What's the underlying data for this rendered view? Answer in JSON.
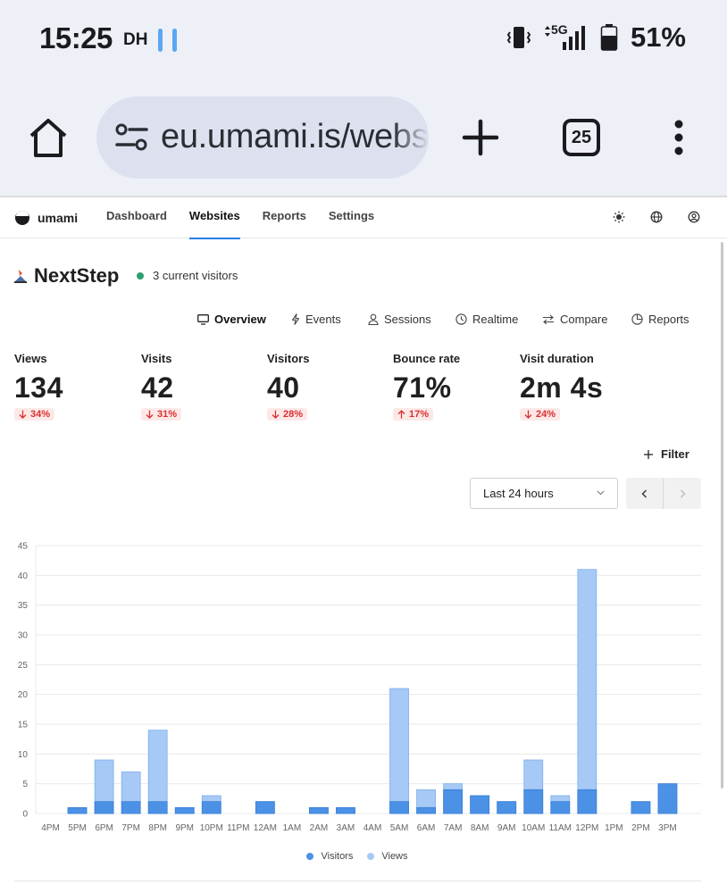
{
  "status_bar": {
    "time": "15:25",
    "carrier": "DH",
    "network": "5G",
    "battery": "51%"
  },
  "browser": {
    "url": "eu.umami.is/websites",
    "tab_count": "25"
  },
  "app": {
    "logo_text": "umami",
    "nav": [
      {
        "label": "Dashboard",
        "active": false
      },
      {
        "label": "Websites",
        "active": true
      },
      {
        "label": "Reports",
        "active": false
      },
      {
        "label": "Settings",
        "active": false
      }
    ]
  },
  "website": {
    "name": "NextStep",
    "current_visitors": "3 current visitors",
    "tabs": [
      {
        "label": "Overview",
        "icon": "monitor-icon",
        "active": true
      },
      {
        "label": "Events",
        "icon": "lightning-icon",
        "active": false
      },
      {
        "label": "Sessions",
        "icon": "user-icon",
        "active": false
      },
      {
        "label": "Realtime",
        "icon": "clock-icon",
        "active": false
      },
      {
        "label": "Compare",
        "icon": "arrows-icon",
        "active": false
      },
      {
        "label": "Reports",
        "icon": "pie-icon",
        "active": false
      }
    ]
  },
  "metrics": [
    {
      "label": "Views",
      "value": "134",
      "change": "34%",
      "direction": "down"
    },
    {
      "label": "Visits",
      "value": "42",
      "change": "31%",
      "direction": "down"
    },
    {
      "label": "Visitors",
      "value": "40",
      "change": "28%",
      "direction": "down"
    },
    {
      "label": "Bounce rate",
      "value": "71%",
      "change": "17%",
      "direction": "up"
    },
    {
      "label": "Visit duration",
      "value": "2m 4s",
      "change": "24%",
      "direction": "down"
    }
  ],
  "controls": {
    "filter_label": "Filter",
    "date_range": "Last 24 hours"
  },
  "colors": {
    "accent": "#2680eb",
    "visitors": "#4b91e6",
    "views": "#a6c9f5",
    "negative": "#d92f2f"
  },
  "chart_data": {
    "type": "bar",
    "categories": [
      "4PM",
      "5PM",
      "6PM",
      "7PM",
      "8PM",
      "9PM",
      "10PM",
      "11PM",
      "12AM",
      "1AM",
      "2AM",
      "3AM",
      "4AM",
      "5AM",
      "6AM",
      "7AM",
      "8AM",
      "9AM",
      "10AM",
      "11AM",
      "12PM",
      "1PM",
      "2PM",
      "3PM"
    ],
    "series": [
      {
        "name": "Visitors",
        "values": [
          0,
          1,
          2,
          2,
          2,
          1,
          2,
          0,
          2,
          0,
          1,
          1,
          0,
          2,
          1,
          4,
          3,
          2,
          4,
          2,
          4,
          0,
          2,
          5
        ]
      },
      {
        "name": "Views",
        "values": [
          0,
          1,
          9,
          7,
          14,
          1,
          3,
          0,
          2,
          0,
          1,
          1,
          0,
          21,
          4,
          5,
          3,
          2,
          9,
          3,
          41,
          0,
          2,
          5
        ]
      }
    ],
    "ylim": [
      0,
      45
    ],
    "yticks": [
      0,
      5,
      10,
      15,
      20,
      25,
      30,
      35,
      40,
      45
    ],
    "grid": true,
    "legend": "bottom-center"
  }
}
